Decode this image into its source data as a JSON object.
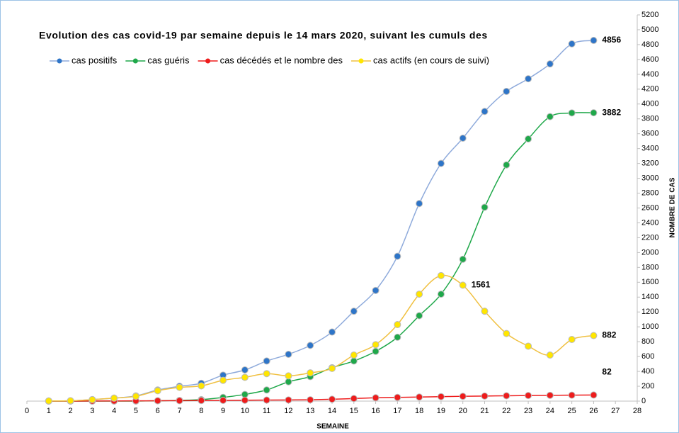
{
  "chart_data": {
    "type": "line",
    "title": "Evolution des cas covid-19 par semaine depuis le 14 mars 2020, suivant les cumuls des",
    "x_label": "SEMAINE",
    "y_label": "NOMBRE DE CAS",
    "x": [
      1,
      2,
      3,
      4,
      5,
      6,
      7,
      8,
      9,
      10,
      11,
      12,
      13,
      14,
      15,
      16,
      17,
      18,
      19,
      20,
      21,
      22,
      23,
      24,
      25,
      26
    ],
    "series": [
      {
        "name": "cas positifs",
        "color": "#2e75c8",
        "line_color": "#8eaadb",
        "labeled_points": [
          25
        ],
        "values": [
          2,
          5,
          20,
          40,
          70,
          150,
          200,
          240,
          350,
          420,
          540,
          630,
          750,
          930,
          1210,
          1490,
          1950,
          2660,
          3200,
          3540,
          3900,
          4170,
          4340,
          4540,
          4810,
          4856
        ]
      },
      {
        "name": "cas guéris",
        "color": "#1fa84a",
        "line_color": "#1fa84a",
        "labeled_points": [
          25
        ],
        "values": [
          0,
          0,
          0,
          0,
          0,
          5,
          10,
          20,
          50,
          90,
          150,
          260,
          330,
          450,
          540,
          670,
          860,
          1150,
          1440,
          1910,
          2610,
          3180,
          3530,
          3830,
          3880,
          3882
        ]
      },
      {
        "name": "cas décédés et le nombre des",
        "color": "#ee1c1c",
        "line_color": "#ee1c1c",
        "labeled_points": [
          25
        ],
        "values": [
          0,
          0,
          1,
          2,
          3,
          5,
          6,
          8,
          10,
          12,
          14,
          16,
          18,
          25,
          35,
          45,
          50,
          55,
          60,
          65,
          68,
          72,
          75,
          78,
          80,
          82
        ]
      },
      {
        "name": "cas actifs (en cours de suivi)",
        "color": "#ffe600",
        "line_color": "#f0c040",
        "labeled_points": [
          19,
          25
        ],
        "values": [
          2,
          5,
          20,
          40,
          65,
          140,
          185,
          205,
          280,
          320,
          370,
          340,
          380,
          440,
          620,
          760,
          1030,
          1440,
          1690,
          1561,
          1210,
          910,
          740,
          620,
          830,
          882
        ]
      }
    ],
    "xlim": [
      0,
      28
    ],
    "xticks": [
      0,
      1,
      2,
      3,
      4,
      5,
      6,
      7,
      8,
      9,
      10,
      11,
      12,
      13,
      14,
      15,
      16,
      17,
      18,
      19,
      20,
      21,
      22,
      23,
      24,
      25,
      26,
      27,
      28
    ],
    "ylim": [
      0,
      5200
    ],
    "yticks": [
      0,
      200,
      400,
      600,
      800,
      1000,
      1200,
      1400,
      1600,
      1800,
      2000,
      2200,
      2400,
      2600,
      2800,
      3000,
      3200,
      3400,
      3600,
      3800,
      4000,
      4200,
      4400,
      4600,
      4800,
      5000,
      5200
    ],
    "grid": false
  }
}
